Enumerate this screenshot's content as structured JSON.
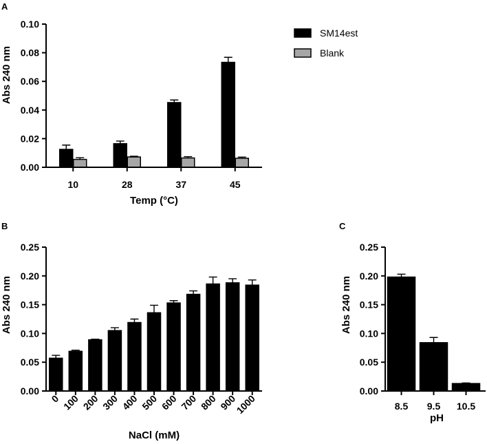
{
  "chart_data": [
    {
      "panel": "A",
      "type": "bar",
      "title": "",
      "xlabel": "Temp (°C)",
      "ylabel": "Abs 240 nm",
      "ylim": [
        0,
        0.1
      ],
      "yticks": [
        "0.00",
        "0.02",
        "0.04",
        "0.06",
        "0.08",
        "0.10"
      ],
      "categories": [
        "10",
        "28",
        "37",
        "45"
      ],
      "series": [
        {
          "name": "SM14est",
          "color": "#000000",
          "values": [
            0.0125,
            0.0165,
            0.0452,
            0.0733
          ],
          "errors": [
            0.003,
            0.0018,
            0.0018,
            0.0035
          ]
        },
        {
          "name": "Blank",
          "color": "#a6a6a6",
          "values": [
            0.0055,
            0.0072,
            0.0065,
            0.0063
          ],
          "errors": [
            0.0012,
            0.0005,
            0.0009,
            0.0008
          ]
        }
      ],
      "legend": "top-right"
    },
    {
      "panel": "B",
      "type": "bar",
      "title": "",
      "xlabel": "NaCl (mM)",
      "ylabel": "Abs 240 nm",
      "ylim": [
        0,
        0.25
      ],
      "yticks": [
        "0.00",
        "0.05",
        "0.10",
        "0.15",
        "0.20",
        "0.25"
      ],
      "categories": [
        "0",
        "100",
        "200",
        "300",
        "400",
        "500",
        "600",
        "700",
        "800",
        "900",
        "1000"
      ],
      "series": [
        {
          "name": "SM14est",
          "color": "#000000",
          "values": [
            0.057,
            0.069,
            0.089,
            0.105,
            0.119,
            0.136,
            0.153,
            0.168,
            0.186,
            0.188,
            0.184
          ],
          "errors": [
            0.005,
            0.002,
            0.001,
            0.005,
            0.006,
            0.013,
            0.004,
            0.006,
            0.012,
            0.007,
            0.009
          ]
        }
      ]
    },
    {
      "panel": "C",
      "type": "bar",
      "title": "",
      "xlabel": "pH",
      "ylabel": "Abs 240 nm",
      "ylim": [
        0,
        0.25
      ],
      "yticks": [
        "0.00",
        "0.05",
        "0.10",
        "0.15",
        "0.20",
        "0.25"
      ],
      "categories": [
        "8.5",
        "9.5",
        "10.5"
      ],
      "series": [
        {
          "name": "SM14est",
          "color": "#000000",
          "values": [
            0.198,
            0.084,
            0.013
          ],
          "errors": [
            0.005,
            0.009,
            0.001
          ]
        }
      ]
    }
  ]
}
